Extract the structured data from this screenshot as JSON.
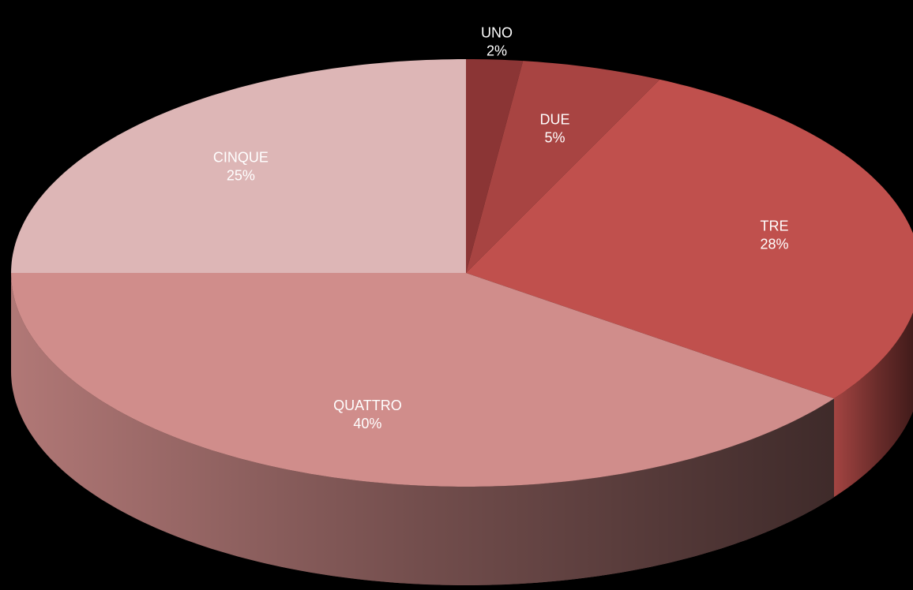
{
  "chart_data": {
    "type": "pie",
    "categories": [
      "UNO",
      "DUE",
      "TRE",
      "QUATTRO",
      "CINQUE"
    ],
    "values": [
      2,
      5,
      28,
      40,
      25
    ],
    "value_labels": [
      "2%",
      "5%",
      "28%",
      "40%",
      "25%"
    ],
    "colors": [
      "#8b3535",
      "#a84442",
      "#c0504d",
      "#d08d8b",
      "#ddb6b6"
    ]
  }
}
